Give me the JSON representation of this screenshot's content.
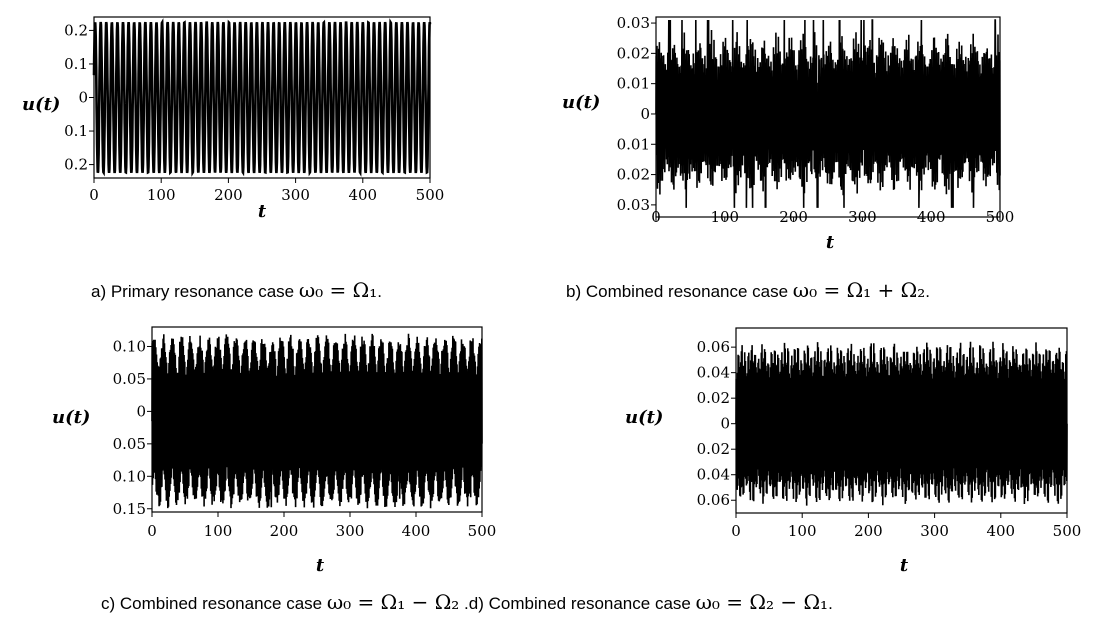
{
  "captions": [
    {
      "prefix": "a) Primary resonance case ",
      "math": "ω₀ = Ω₁",
      "suffix": "."
    },
    {
      "prefix": "b) Combined  resonance case ",
      "math": "ω₀ = Ω₁ + Ω₂",
      "suffix": "."
    },
    {
      "prefix": "c) Combined  resonance case  ",
      "math": "ω₀ = Ω₁ − Ω₂",
      "suffix": " ."
    },
    {
      "prefix": "d) Combined  resonance case  ",
      "math": "ω₀ = Ω₂ − Ω₁",
      "suffix": "."
    }
  ],
  "chart_data": [
    {
      "type": "line",
      "xlabel": "t",
      "ylabel": "u(t)",
      "xlim": [
        0,
        500
      ],
      "ylim": [
        -0.24,
        0.24
      ],
      "xticks": [
        "0",
        "100",
        "200",
        "300",
        "400",
        "500"
      ],
      "yticks": [
        {
          "v": 0.2,
          "label": "0.2"
        },
        {
          "v": 0.1,
          "label": "0.1"
        },
        {
          "v": 0,
          "label": "0"
        },
        {
          "v": -0.1,
          "label": "0.1"
        },
        {
          "v": -0.2,
          "label": "0.2"
        }
      ],
      "signal": {
        "amplitude": 0.225,
        "period_t": 8.3,
        "description": "regular near-sinusoidal oscillation, constant amplitude ~0.22"
      },
      "color": "#000000"
    },
    {
      "type": "line",
      "xlabel": "t",
      "ylabel": "u(t)",
      "xlim": [
        0,
        500
      ],
      "ylim": [
        -0.034,
        0.032
      ],
      "xticks": [
        "0",
        "100",
        "200",
        "300",
        "400",
        "500"
      ],
      "yticks": [
        {
          "v": 0.03,
          "label": "0.03"
        },
        {
          "v": 0.02,
          "label": "0.02"
        },
        {
          "v": 0.01,
          "label": "0.01"
        },
        {
          "v": 0,
          "label": "0"
        },
        {
          "v": -0.01,
          "label": "0.01"
        },
        {
          "v": -0.02,
          "label": "0.02"
        },
        {
          "v": -0.03,
          "label": "0.03"
        }
      ],
      "signal": {
        "amplitude": 0.028,
        "period_t": 1.2,
        "description": "dense oscillation, amplitude ~0.025-0.03, slight beating"
      },
      "color": "#000000"
    },
    {
      "type": "line",
      "xlabel": "t",
      "ylabel": "u(t)",
      "xlim": [
        0,
        500
      ],
      "ylim": [
        -0.155,
        0.13
      ],
      "xticks": [
        "0",
        "100",
        "200",
        "300",
        "400",
        "500"
      ],
      "yticks": [
        {
          "v": 0.1,
          "label": "0.10"
        },
        {
          "v": 0.05,
          "label": "0.05"
        },
        {
          "v": 0,
          "label": "0"
        },
        {
          "v": -0.05,
          "label": "0.05"
        },
        {
          "v": -0.1,
          "label": "0.10"
        },
        {
          "v": -0.15,
          "label": "0.15"
        }
      ],
      "signal": {
        "upper": 0.12,
        "lower": -0.15,
        "period_t": 1.1,
        "description": "dense oscillation between ~0.12 and ~-0.15 with irregular excursions"
      },
      "color": "#000000"
    },
    {
      "type": "line",
      "xlabel": "t",
      "ylabel": "u(t)",
      "xlim": [
        0,
        500
      ],
      "ylim": [
        -0.07,
        0.075
      ],
      "xticks": [
        "0",
        "100",
        "200",
        "300",
        "400",
        "500"
      ],
      "yticks": [
        {
          "v": 0.06,
          "label": "0.06"
        },
        {
          "v": 0.04,
          "label": "0.04"
        },
        {
          "v": 0.02,
          "label": "0.02"
        },
        {
          "v": 0,
          "label": "0"
        },
        {
          "v": -0.02,
          "label": "0.02"
        },
        {
          "v": -0.04,
          "label": "0.04"
        },
        {
          "v": -0.06,
          "label": "0.06"
        }
      ],
      "signal": {
        "amplitude": 0.066,
        "beat_period_t": 16.5,
        "period_t": 1.0,
        "description": "dense oscillation, amplitude ~0.066 with regular beat envelope"
      },
      "color": "#000000"
    }
  ]
}
